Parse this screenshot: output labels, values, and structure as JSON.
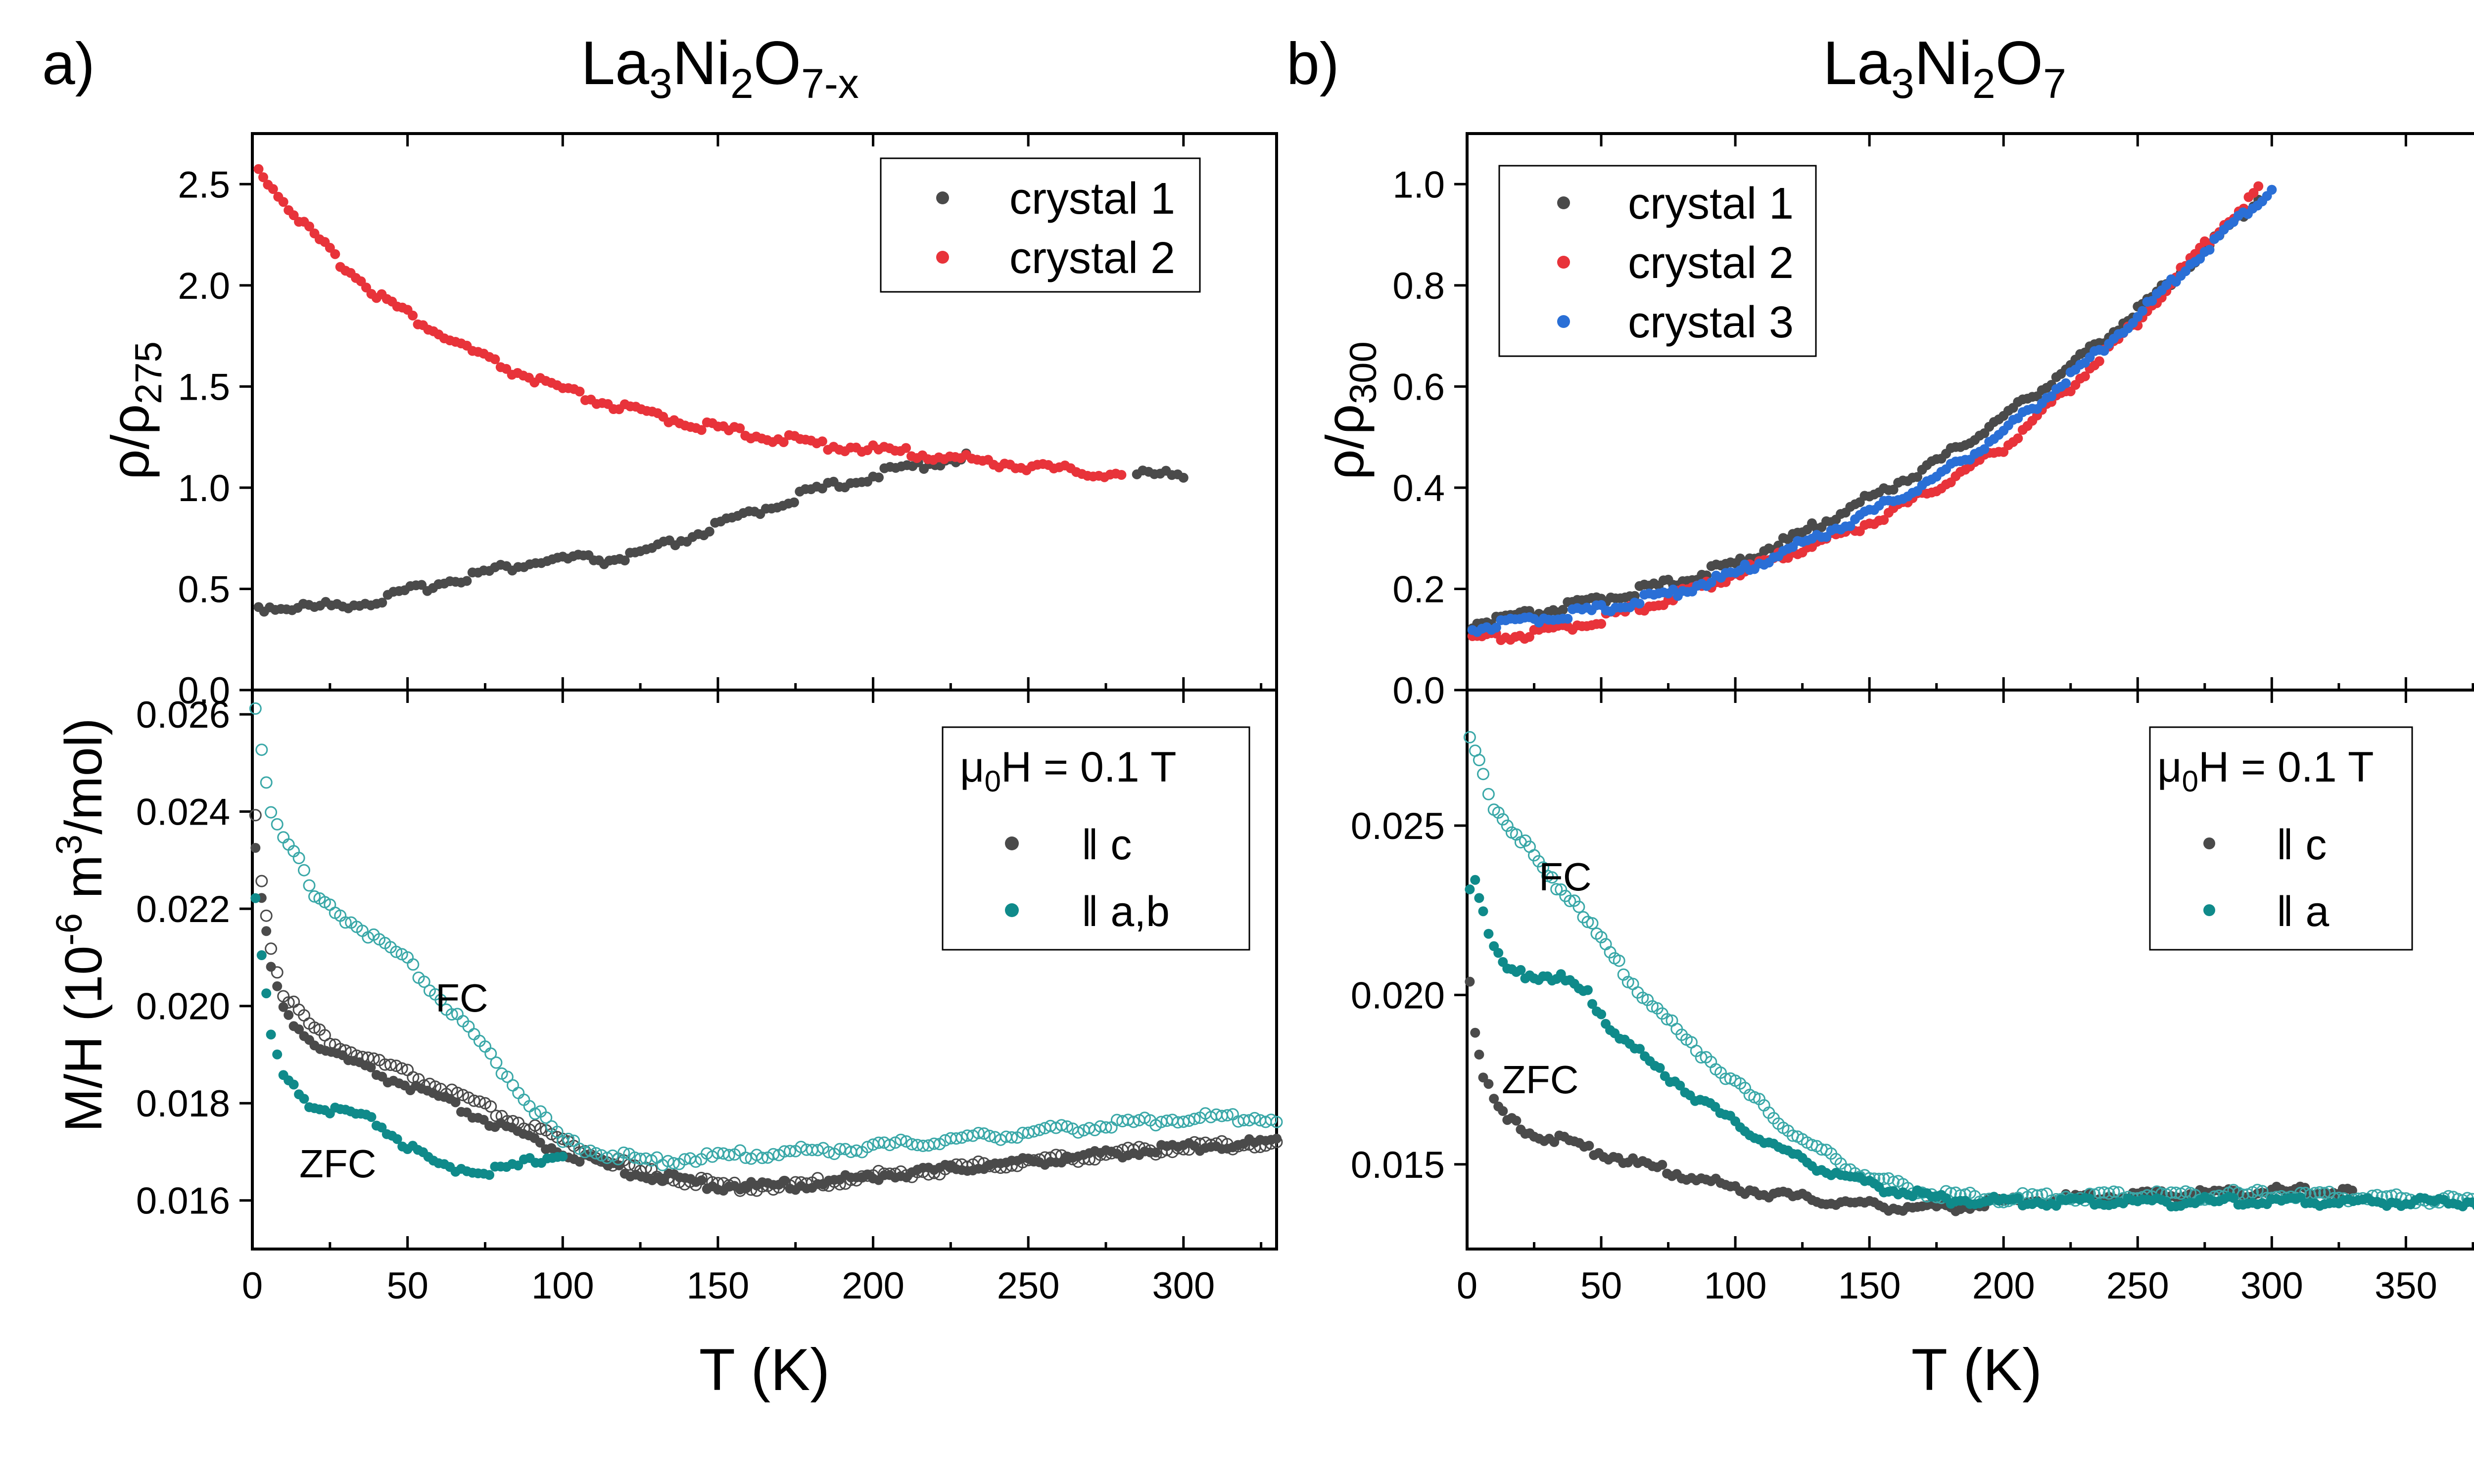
{
  "figure": {
    "panel_a": {
      "label": "a)",
      "title": "La₃Ni₂O₇₋ₓ",
      "title_parts": {
        "base": "La",
        "sub1": "3",
        "mid1": "Ni",
        "sub2": "2",
        "mid2": "O",
        "sub3": "7-x"
      }
    },
    "panel_b": {
      "label": "b)",
      "title": "La₃Ni₂O₇",
      "title_parts": {
        "base": "La",
        "sub1": "3",
        "mid1": "Ni",
        "sub2": "2",
        "mid2": "O",
        "sub3": "7"
      }
    },
    "colors": {
      "gray": "#4a4a4a",
      "red": "#e8333a",
      "blue": "#2a6fd6",
      "teal": "#0f8a8a",
      "teal_open": "#3aa8a8"
    }
  },
  "chart_data": [
    {
      "id": "a-top",
      "type": "scatter",
      "title": "",
      "xlabel": "",
      "ylabel": "ρ/ρ₂₇₅",
      "ylabel_parts": {
        "main": "ρ/ρ",
        "sub": "275"
      },
      "xlim": [
        0,
        330
      ],
      "ylim": [
        0,
        2.75
      ],
      "xticks": [
        0,
        50,
        100,
        150,
        200,
        250,
        300
      ],
      "yticks": [
        0.0,
        0.5,
        1.0,
        1.5,
        2.0,
        2.5
      ],
      "ytick_labels": [
        "0.0",
        "0.5",
        "1.0",
        "1.5",
        "2.0",
        "2.5"
      ],
      "legend": {
        "position": "top-right",
        "entries": [
          "crystal 1",
          "crystal 2"
        ]
      },
      "series": [
        {
          "name": "crystal 1",
          "color": "#4a4a4a",
          "marker": "filled",
          "points": [
            [
              2,
              0.41
            ],
            [
              20,
              0.41
            ],
            [
              40,
              0.44
            ],
            [
              60,
              0.53
            ],
            [
              80,
              0.6
            ],
            [
              95,
              0.64
            ],
            [
              105,
              0.65
            ],
            [
              115,
              0.64
            ],
            [
              125,
              0.67
            ],
            [
              140,
              0.75
            ],
            [
              160,
              0.87
            ],
            [
              180,
              0.98
            ],
            [
              200,
              1.06
            ],
            [
              220,
              1.13
            ],
            [
              230,
              1.15
            ]
          ]
        },
        {
          "name": "crystal 1",
          "color": "#4a4a4a",
          "marker": "filled",
          "points": [
            [
              285,
              1.07
            ],
            [
              300,
              1.06
            ]
          ]
        },
        {
          "name": "crystal 2",
          "color": "#e8333a",
          "marker": "filled",
          "points": [
            [
              2,
              2.57
            ],
            [
              5,
              2.52
            ],
            [
              10,
              2.42
            ],
            [
              20,
              2.24
            ],
            [
              30,
              2.09
            ],
            [
              40,
              1.96
            ],
            [
              50,
              1.86
            ],
            [
              60,
              1.76
            ],
            [
              80,
              1.6
            ],
            [
              100,
              1.48
            ],
            [
              120,
              1.39
            ],
            [
              150,
              1.29
            ],
            [
              180,
              1.22
            ],
            [
              200,
              1.19
            ],
            [
              230,
              1.14
            ],
            [
              260,
              1.09
            ],
            [
              280,
              1.06
            ]
          ]
        }
      ]
    },
    {
      "id": "a-bottom",
      "type": "scatter",
      "title": "",
      "xlabel": "T (K)",
      "ylabel": "M/H (10⁻⁶ m³/mol)",
      "ylabel_parts": {
        "main": "M/H (10",
        "sup1": "-6",
        "mid": " m",
        "sup2": "3",
        "end": "/mol)"
      },
      "xlim": [
        0,
        330
      ],
      "ylim": [
        0.015,
        0.0265
      ],
      "xticks": [
        0,
        50,
        100,
        150,
        200,
        250,
        300
      ],
      "xtick_labels": [
        "0",
        "50",
        "100",
        "150",
        "200",
        "250",
        "300"
      ],
      "yticks": [
        0.016,
        0.018,
        0.02,
        0.022,
        0.024,
        0.026
      ],
      "ytick_labels": [
        "0.016",
        "0.018",
        "0.020",
        "0.022",
        "0.024",
        "0.026"
      ],
      "legend": {
        "position": "top-right",
        "header": "μ₀H = 0.1 T",
        "header_parts": {
          "mu": "μ",
          "sub": "0",
          "rest": "H = 0.1 T"
        },
        "entries": [
          "‖ c",
          "‖ a,b"
        ]
      },
      "annotations": [
        {
          "text": "FC",
          "x": 70,
          "y": 0.0201
        },
        {
          "text": "ZFC",
          "x": 15,
          "y": 0.0167
        }
      ],
      "series": [
        {
          "name": "‖ c FC",
          "color": "#4a4a4a",
          "marker": "open",
          "points": [
            [
              1,
              0.024
            ],
            [
              3,
              0.0226
            ],
            [
              6,
              0.0212
            ],
            [
              10,
              0.0203
            ],
            [
              20,
              0.0195
            ],
            [
              30,
              0.0191
            ],
            [
              50,
              0.0186
            ],
            [
              75,
              0.0179
            ],
            [
              100,
              0.0172
            ],
            [
              125,
              0.0166
            ],
            [
              150,
              0.0163
            ],
            [
              175,
              0.0163
            ],
            [
              200,
              0.0165
            ],
            [
              250,
              0.0168
            ],
            [
              300,
              0.0171
            ],
            [
              330,
              0.0172
            ]
          ]
        },
        {
          "name": "‖ c ZFC",
          "color": "#4a4a4a",
          "marker": "filled",
          "points": [
            [
              1,
              0.0232
            ],
            [
              3,
              0.0222
            ],
            [
              6,
              0.0208
            ],
            [
              10,
              0.0199
            ],
            [
              20,
              0.0192
            ],
            [
              40,
              0.0186
            ],
            [
              60,
              0.0181
            ],
            [
              80,
              0.0175
            ],
            [
              100,
              0.017
            ],
            [
              120,
              0.0166
            ],
            [
              150,
              0.0163
            ],
            [
              175,
              0.0163
            ],
            [
              200,
              0.0165
            ],
            [
              250,
              0.0168
            ],
            [
              300,
              0.0171
            ],
            [
              330,
              0.0172
            ]
          ]
        },
        {
          "name": "‖ a,b FC",
          "color": "#3aa8a8",
          "marker": "open",
          "points": [
            [
              1,
              0.0262
            ],
            [
              3,
              0.0253
            ],
            [
              6,
              0.024
            ],
            [
              10,
              0.0235
            ],
            [
              15,
              0.023
            ],
            [
              20,
              0.0222
            ],
            [
              30,
              0.0218
            ],
            [
              50,
              0.0209
            ],
            [
              75,
              0.0191
            ],
            [
              100,
              0.0172
            ],
            [
              125,
              0.0168
            ],
            [
              150,
              0.0169
            ],
            [
              200,
              0.0171
            ],
            [
              250,
              0.0174
            ],
            [
              300,
              0.0177
            ],
            [
              330,
              0.0177
            ]
          ]
        },
        {
          "name": "‖ a,b ZFC",
          "color": "#0f8a8a",
          "marker": "filled",
          "points": [
            [
              1,
              0.0222
            ],
            [
              3,
              0.021
            ],
            [
              6,
              0.0194
            ],
            [
              10,
              0.0185
            ],
            [
              20,
              0.0179
            ],
            [
              30,
              0.0178
            ],
            [
              40,
              0.0176
            ],
            [
              50,
              0.0171
            ],
            [
              60,
              0.0167
            ],
            [
              80,
              0.0166
            ],
            [
              95,
              0.0169
            ],
            [
              100,
              0.017
            ]
          ]
        }
      ]
    },
    {
      "id": "b-top",
      "type": "scatter",
      "title": "",
      "xlabel": "",
      "ylabel": "ρ/ρ₃₀₀",
      "ylabel_parts": {
        "main": "ρ/ρ",
        "sub": "300"
      },
      "xlim": [
        0,
        380
      ],
      "ylim": [
        0,
        1.1
      ],
      "xticks": [
        0,
        50,
        100,
        150,
        200,
        250,
        300,
        350
      ],
      "yticks": [
        0.0,
        0.2,
        0.4,
        0.6,
        0.8,
        1.0
      ],
      "ytick_labels": [
        "0.0",
        "0.2",
        "0.4",
        "0.6",
        "0.8",
        "1.0"
      ],
      "legend": {
        "position": "top-left",
        "entries": [
          "crystal 1",
          "crystal 2",
          "crystal 3"
        ]
      },
      "series": [
        {
          "name": "crystal 1",
          "color": "#4a4a4a",
          "marker": "filled",
          "points": [
            [
              2,
              0.13
            ],
            [
              25,
              0.15
            ],
            [
              50,
              0.18
            ],
            [
              75,
              0.21
            ],
            [
              100,
              0.25
            ],
            [
              125,
              0.31
            ],
            [
              150,
              0.38
            ],
            [
              175,
              0.45
            ],
            [
              200,
              0.54
            ],
            [
              225,
              0.64
            ],
            [
              250,
              0.75
            ],
            [
              275,
              0.87
            ],
            [
              295,
              0.97
            ]
          ]
        },
        {
          "name": "crystal 2",
          "color": "#e8333a",
          "marker": "filled",
          "points": [
            [
              2,
              0.1
            ],
            [
              25,
              0.11
            ],
            [
              50,
              0.14
            ],
            [
              75,
              0.18
            ],
            [
              100,
              0.23
            ],
            [
              125,
              0.28
            ],
            [
              150,
              0.33
            ],
            [
              175,
              0.4
            ],
            [
              200,
              0.48
            ],
            [
              225,
              0.6
            ],
            [
              250,
              0.73
            ],
            [
              275,
              0.88
            ],
            [
              295,
              0.99
            ]
          ]
        },
        {
          "name": "crystal 3",
          "color": "#2a6fd6",
          "marker": "filled",
          "points": [
            [
              2,
              0.12
            ],
            [
              25,
              0.14
            ],
            [
              50,
              0.16
            ],
            [
              75,
              0.19
            ],
            [
              100,
              0.23
            ],
            [
              125,
              0.29
            ],
            [
              150,
              0.35
            ],
            [
              175,
              0.42
            ],
            [
              200,
              0.51
            ],
            [
              225,
              0.62
            ],
            [
              250,
              0.74
            ],
            [
              275,
              0.87
            ],
            [
              300,
              0.99
            ]
          ]
        }
      ]
    },
    {
      "id": "b-bottom",
      "type": "scatter",
      "title": "",
      "xlabel": "T (K)",
      "ylabel": "",
      "xlim": [
        0,
        380
      ],
      "ylim": [
        0.0125,
        0.029
      ],
      "xticks": [
        0,
        50,
        100,
        150,
        200,
        250,
        300,
        350
      ],
      "xtick_labels": [
        "0",
        "50",
        "100",
        "150",
        "200",
        "250",
        "300",
        "350"
      ],
      "yticks": [
        0.015,
        0.02,
        0.025
      ],
      "ytick_labels": [
        "0.015",
        "0.020",
        "0.025"
      ],
      "legend": {
        "position": "top-right",
        "header": "μ₀H = 0.1 T",
        "header_parts": {
          "mu": "μ",
          "sub": "0",
          "rest": "H = 0.1 T"
        },
        "entries": [
          "‖ c",
          "‖ a"
        ]
      },
      "annotations": [
        {
          "text": "FC",
          "x": 28,
          "y": 0.0244
        },
        {
          "text": "ZFC",
          "x": 14,
          "y": 0.019
        }
      ],
      "series": [
        {
          "name": "‖ c",
          "color": "#4a4a4a",
          "marker": "filled",
          "points": [
            [
              1,
              0.0205
            ],
            [
              3,
              0.019
            ],
            [
              6,
              0.0177
            ],
            [
              10,
              0.0168
            ],
            [
              15,
              0.0163
            ],
            [
              25,
              0.0159
            ],
            [
              40,
              0.0156
            ],
            [
              60,
              0.0151
            ],
            [
              80,
              0.0147
            ],
            [
              100,
              0.0143
            ],
            [
              125,
              0.014
            ],
            [
              150,
              0.0138
            ],
            [
              175,
              0.0137
            ],
            [
              200,
              0.0139
            ],
            [
              250,
              0.0141
            ],
            [
              300,
              0.0142
            ],
            [
              330,
              0.0142
            ]
          ]
        },
        {
          "name": "‖ a FC",
          "color": "#3aa8a8",
          "marker": "open",
          "points": [
            [
              1,
              0.0275
            ],
            [
              3,
              0.0272
            ],
            [
              6,
              0.0264
            ],
            [
              10,
              0.0256
            ],
            [
              20,
              0.0246
            ],
            [
              30,
              0.0235
            ],
            [
              40,
              0.0228
            ],
            [
              50,
              0.0216
            ],
            [
              60,
              0.0205
            ],
            [
              80,
              0.0188
            ],
            [
              100,
              0.0174
            ],
            [
              125,
              0.0157
            ],
            [
              150,
              0.0146
            ],
            [
              175,
              0.0141
            ],
            [
              200,
              0.014
            ],
            [
              250,
              0.0141
            ],
            [
              300,
              0.0141
            ],
            [
              350,
              0.014
            ],
            [
              380,
              0.0139
            ]
          ]
        },
        {
          "name": "‖ a ZFC",
          "color": "#0f8a8a",
          "marker": "filled",
          "points": [
            [
              1,
              0.0232
            ],
            [
              3,
              0.0235
            ],
            [
              6,
              0.0225
            ],
            [
              10,
              0.0213
            ],
            [
              15,
              0.0207
            ],
            [
              25,
              0.0206
            ],
            [
              35,
              0.0205
            ],
            [
              45,
              0.02
            ],
            [
              55,
              0.0189
            ],
            [
              70,
              0.0179
            ],
            [
              85,
              0.017
            ],
            [
              100,
              0.0162
            ],
            [
              125,
              0.0151
            ],
            [
              150,
              0.0144
            ],
            [
              175,
              0.014
            ],
            [
              200,
              0.0139
            ],
            [
              250,
              0.0139
            ],
            [
              300,
              0.0139
            ],
            [
              350,
              0.0139
            ],
            [
              380,
              0.0139
            ]
          ]
        }
      ]
    }
  ]
}
